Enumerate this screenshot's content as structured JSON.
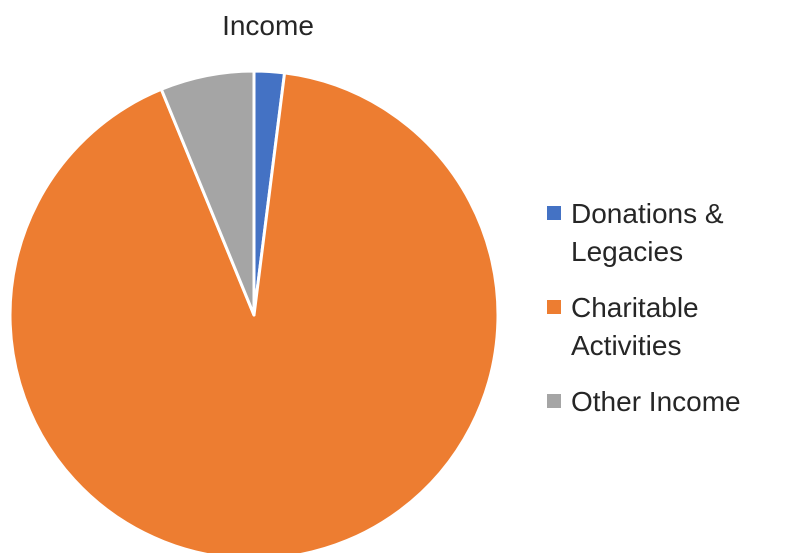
{
  "chart_data": {
    "type": "pie",
    "title": "Income",
    "slices": [
      {
        "name": "Donations & Legacies",
        "value": 2.0,
        "color": "#4472C4"
      },
      {
        "name": "Charitable Activities",
        "value": 91.8,
        "color": "#ED7D31"
      },
      {
        "name": "Other Income",
        "value": 6.2,
        "color": "#A5A5A5"
      }
    ],
    "legend_position": "right"
  }
}
